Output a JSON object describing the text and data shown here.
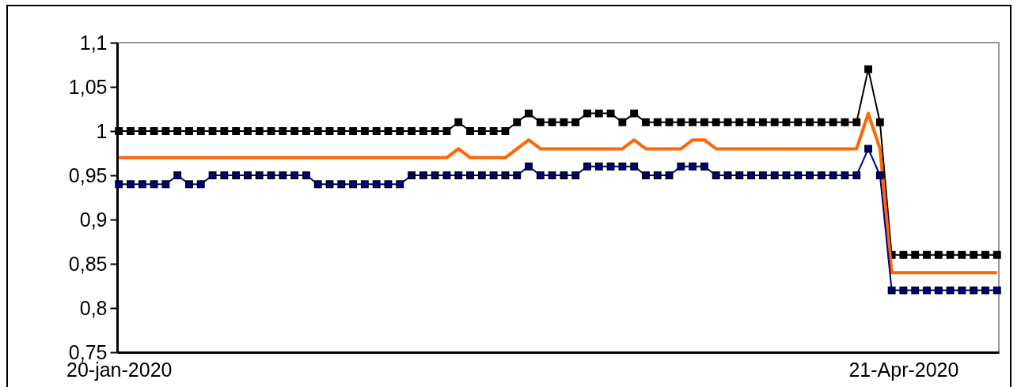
{
  "chart_data": {
    "type": "line",
    "categories": [
      "20-jan-2020",
      null,
      null,
      null,
      null,
      null,
      null,
      null,
      null,
      null,
      null,
      null,
      null,
      null,
      null,
      null,
      null,
      null,
      null,
      null,
      null,
      null,
      null,
      null,
      null,
      null,
      null,
      null,
      null,
      null,
      null,
      null,
      null,
      null,
      null,
      null,
      null,
      null,
      null,
      null,
      null,
      null,
      null,
      null,
      null,
      null,
      null,
      null,
      null,
      null,
      null,
      null,
      null,
      null,
      null,
      null,
      null,
      null,
      null,
      null,
      null,
      null,
      null,
      null,
      null,
      null,
      null,
      "21-Apr-2020",
      null,
      null,
      null,
      null,
      null,
      null,
      null,
      null
    ],
    "series": [
      {
        "color": "#000000",
        "marker": "square",
        "values": [
          1,
          1,
          1,
          1,
          1,
          1,
          1,
          1,
          1,
          1,
          1,
          1,
          1,
          1,
          1,
          1,
          1,
          1,
          1,
          1,
          1,
          1,
          1,
          1,
          1,
          1,
          1,
          1,
          1,
          1.01,
          1,
          1,
          1,
          1,
          1.01,
          1.02,
          1.01,
          1.01,
          1.01,
          1.01,
          1.02,
          1.02,
          1.02,
          1.01,
          1.02,
          1.01,
          1.01,
          1.01,
          1.01,
          1.01,
          1.01,
          1.01,
          1.01,
          1.01,
          1.01,
          1.01,
          1.01,
          1.01,
          1.01,
          1.01,
          1.01,
          1.01,
          1.01,
          1.01,
          1.07,
          1.01,
          0.86,
          0.86,
          0.86,
          0.86,
          0.86,
          0.86,
          0.86,
          0.86,
          0.86,
          0.86
        ]
      },
      {
        "color": "#ff6600",
        "marker": "none",
        "values": [
          0.97,
          0.97,
          0.97,
          0.97,
          0.97,
          0.97,
          0.97,
          0.97,
          0.97,
          0.97,
          0.97,
          0.97,
          0.97,
          0.97,
          0.97,
          0.97,
          0.97,
          0.97,
          0.97,
          0.97,
          0.97,
          0.97,
          0.97,
          0.97,
          0.97,
          0.97,
          0.97,
          0.97,
          0.97,
          0.98,
          0.97,
          0.97,
          0.97,
          0.97,
          0.98,
          0.99,
          0.98,
          0.98,
          0.98,
          0.98,
          0.98,
          0.98,
          0.98,
          0.98,
          0.99,
          0.98,
          0.98,
          0.98,
          0.98,
          0.99,
          0.99,
          0.98,
          0.98,
          0.98,
          0.98,
          0.98,
          0.98,
          0.98,
          0.98,
          0.98,
          0.98,
          0.98,
          0.98,
          0.98,
          1.02,
          0.98,
          0.84,
          0.84,
          0.84,
          0.84,
          0.84,
          0.84,
          0.84,
          0.84,
          0.84,
          0.84
        ]
      },
      {
        "color": "#000080",
        "marker": "square",
        "values": [
          0.94,
          0.94,
          0.94,
          0.94,
          0.94,
          0.95,
          0.94,
          0.94,
          0.95,
          0.95,
          0.95,
          0.95,
          0.95,
          0.95,
          0.95,
          0.95,
          0.95,
          0.94,
          0.94,
          0.94,
          0.94,
          0.94,
          0.94,
          0.94,
          0.94,
          0.95,
          0.95,
          0.95,
          0.95,
          0.95,
          0.95,
          0.95,
          0.95,
          0.95,
          0.95,
          0.96,
          0.95,
          0.95,
          0.95,
          0.95,
          0.96,
          0.96,
          0.96,
          0.96,
          0.96,
          0.95,
          0.95,
          0.95,
          0.96,
          0.96,
          0.96,
          0.95,
          0.95,
          0.95,
          0.95,
          0.95,
          0.95,
          0.95,
          0.95,
          0.95,
          0.95,
          0.95,
          0.95,
          0.95,
          0.98,
          0.95,
          0.82,
          0.82,
          0.82,
          0.82,
          0.82,
          0.82,
          0.82,
          0.82,
          0.82,
          0.82
        ]
      }
    ],
    "ylim": [
      0.75,
      1.1
    ],
    "yticks": [
      {
        "value": 0.75,
        "label": "0,75"
      },
      {
        "value": 0.8,
        "label": "0,8"
      },
      {
        "value": 0.85,
        "label": "0,85"
      },
      {
        "value": 0.9,
        "label": "0,9"
      },
      {
        "value": 0.95,
        "label": "0,95"
      },
      {
        "value": 1,
        "label": "1"
      },
      {
        "value": 1.05,
        "label": "1,05"
      },
      {
        "value": 1.1,
        "label": "1,1"
      }
    ],
    "grid": false
  }
}
